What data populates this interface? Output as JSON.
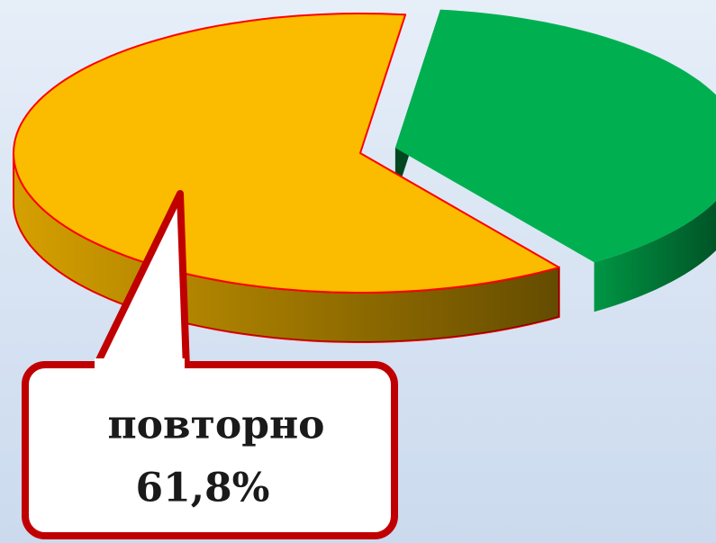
{
  "chart_data": {
    "type": "pie",
    "categories": [
      "повторно",
      null
    ],
    "values": [
      61.8,
      38.2
    ],
    "value_labels": [
      "61,8%",
      null
    ],
    "colors": [
      "#fbbc00",
      "#00b050"
    ]
  }
}
